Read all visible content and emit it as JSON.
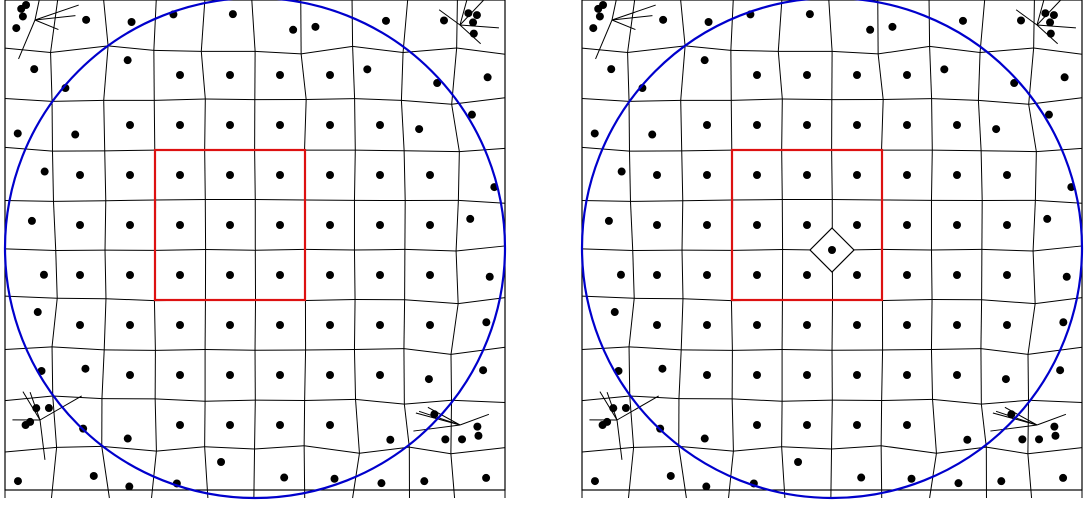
{
  "figure": {
    "panels": [
      {
        "id": "left",
        "perturbed_cell": false
      },
      {
        "id": "right",
        "perturbed_cell": true
      }
    ],
    "grid": {
      "columns": 10,
      "rows": 10,
      "highlight_columns": [
        3,
        6
      ],
      "highlight_rows": [
        3,
        6
      ]
    },
    "colors": {
      "cell_edges": "#000000",
      "sites": "#000000",
      "circle": "#0000cc",
      "highlight_square": "#dd1111"
    }
  }
}
